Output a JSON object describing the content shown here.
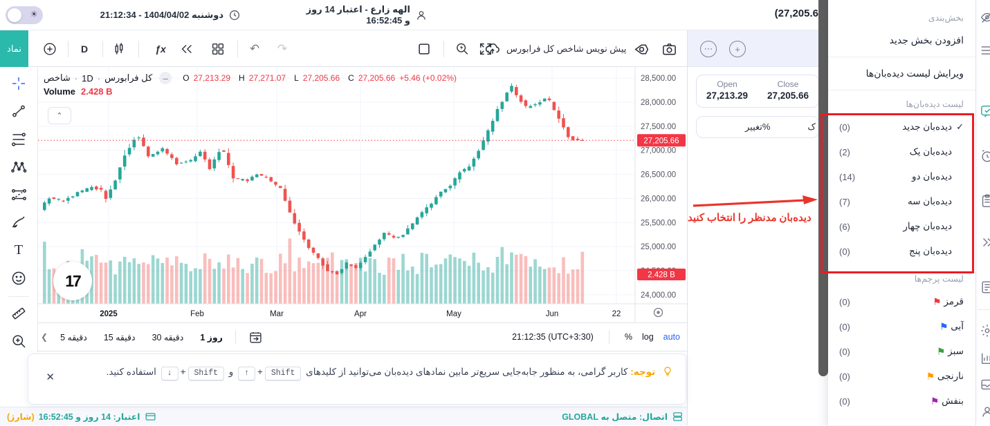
{
  "top_bar": {
    "clock_text": "دوشنبه 1404/04/02 - 21:12:34",
    "user_text": "الهه زارع - اعتبار 14 روز و 16:52:45",
    "page_price": "(27,205.6"
  },
  "toolbar": {
    "symbol_button": "نماد",
    "interval_label": "D",
    "fx_label": "ƒx",
    "draft_label": "پیش نویس شاخص کل فرابورس",
    "undo_glyph": "↶",
    "redo_glyph": "↷",
    "icons": [
      "plus-circle-icon",
      "interval-d",
      "candles-icon",
      "fx-icon",
      "rewind-icon",
      "layout-grid-icon",
      "undo-icon",
      "redo-icon",
      "square-icon",
      "zoom-flash-icon",
      "fullscreen-icon",
      "cloud-upload-icon",
      "gear-icon",
      "camera-icon"
    ]
  },
  "left_toolbar": {
    "icons": [
      "crosshair-icon",
      "trendline-icon",
      "fib-icon",
      "xabcd-icon",
      "projection-icon",
      "brush-icon",
      "text-icon",
      "emoji-icon",
      "ruler-icon",
      "zoom-in-icon"
    ],
    "text_tool_glyph": "T"
  },
  "legend": {
    "symbol_part1": "شاخص",
    "separator": "·",
    "interval": "1D",
    "symbol_part2": "کل فرابورس",
    "o_label": "O",
    "o_value": "27,213.29",
    "h_label": "H",
    "h_value": "27,271.07",
    "l_label": "L",
    "l_value": "27,205.66",
    "c_label": "C",
    "c_value": "27,205.66",
    "change": "+5.46 (+0.02%)",
    "volume_label": "Volume",
    "volume_value": "2.428 B",
    "collapse_glyph": "⌃",
    "watermark": "17"
  },
  "intervals": {
    "buttons": [
      {
        "label": "5 دقیقه",
        "selected": false
      },
      {
        "label": "15 دقیقه",
        "selected": false
      },
      {
        "label": "30 دقیقه",
        "selected": false
      },
      {
        "label": "1 روز",
        "selected": true
      }
    ],
    "clock": "21:12:35 (UTC+3:30)",
    "percent": "%",
    "log": "log",
    "auto": "auto",
    "collapse_glyph": "❮"
  },
  "chart_data": {
    "type": "candlestick+volume",
    "symbol": "شاخص کل فرابورس",
    "timeframe": "1D",
    "ohlc_current": {
      "open": 27213.29,
      "high": 27271.07,
      "low": 27205.66,
      "close": 27205.66,
      "change": "+5.46",
      "change_pct": "+0.02%"
    },
    "volume_current": "2.428 B",
    "ylim": [
      24000,
      28500
    ],
    "grid": true,
    "y_ticks": [
      {
        "label": "28,500.00",
        "price": 28500
      },
      {
        "label": "28,000.00",
        "price": 28000
      },
      {
        "label": "27,500.00",
        "price": 27500
      },
      {
        "label": "27,000.00",
        "price": 27000
      },
      {
        "label": "26,500.00",
        "price": 26500
      },
      {
        "label": "26,000.00",
        "price": 26000
      },
      {
        "label": "25,500.00",
        "price": 25500
      },
      {
        "label": "25,000.00",
        "price": 25000
      },
      {
        "label": "24,500.00",
        "price": 24500
      },
      {
        "label": "24,000.00",
        "price": 24000
      }
    ],
    "x_ticks": [
      {
        "label": "2025",
        "x": 102,
        "major": true
      },
      {
        "label": "Feb",
        "x": 230
      },
      {
        "label": "Mar",
        "x": 345
      },
      {
        "label": "Apr",
        "x": 466
      },
      {
        "label": "May",
        "x": 601
      },
      {
        "label": "Jun",
        "x": 743
      },
      {
        "label": "22",
        "x": 836
      }
    ],
    "price_line": 27205.66,
    "price_badge": "27,205.66",
    "volume_badge": "2.428 B",
    "candle_count": 115,
    "path": [
      [
        0,
        25780
      ],
      [
        2,
        26010
      ],
      [
        5,
        25950
      ],
      [
        8,
        26120
      ],
      [
        11,
        26230
      ],
      [
        13,
        26180
      ],
      [
        14,
        25990
      ],
      [
        16,
        26380
      ],
      [
        18,
        26900
      ],
      [
        20,
        27230
      ],
      [
        21,
        27260
      ],
      [
        23,
        26890
      ],
      [
        26,
        27030
      ],
      [
        29,
        26720
      ],
      [
        32,
        26780
      ],
      [
        34,
        26960
      ],
      [
        36,
        26620
      ],
      [
        38,
        26980
      ],
      [
        39,
        26950
      ],
      [
        41,
        26400
      ],
      [
        44,
        26380
      ],
      [
        46,
        26500
      ],
      [
        48,
        26420
      ],
      [
        51,
        26200
      ],
      [
        53,
        25700
      ],
      [
        55,
        25300
      ],
      [
        57,
        24980
      ],
      [
        59,
        24750
      ],
      [
        61,
        24500
      ],
      [
        63,
        24440
      ],
      [
        65,
        24650
      ],
      [
        67,
        24550
      ],
      [
        69,
        24770
      ],
      [
        71,
        25050
      ],
      [
        73,
        25280
      ],
      [
        75,
        25180
      ],
      [
        77,
        25250
      ],
      [
        80,
        25600
      ],
      [
        83,
        25900
      ],
      [
        85,
        26150
      ],
      [
        87,
        26250
      ],
      [
        89,
        26550
      ],
      [
        91,
        26650
      ],
      [
        93,
        27000
      ],
      [
        95,
        27400
      ],
      [
        97,
        27850
      ],
      [
        99,
        28200
      ],
      [
        100,
        28330
      ],
      [
        101,
        28150
      ],
      [
        103,
        27900
      ],
      [
        105,
        27960
      ],
      [
        107,
        28060
      ],
      [
        108,
        28020
      ],
      [
        110,
        27650
      ],
      [
        112,
        27280
      ],
      [
        113,
        27230
      ],
      [
        115,
        27206
      ]
    ],
    "volume_spikes": {
      "0": 2.9,
      "8": 2.55,
      "52": 3.05,
      "97": 2.65,
      "99": 2.4,
      "114": 2.428
    },
    "colors": {
      "up": "#26a69a",
      "down": "#ef5350",
      "vol_up": "rgba(38,166,154,0.45)",
      "vol_down": "rgba(239,83,80,0.38)",
      "grid": "#f0f3fa",
      "axis_text": "#50535e",
      "badge": "#f23645"
    }
  },
  "right_panel": {
    "open_label": "Open",
    "open_value": "27,213.29",
    "close_label": "Close",
    "close_value": "27,205.66",
    "change_tab": "تغییر%",
    "cut_glyph": "ک",
    "annotation": "دیده‌بان مدنظر را انتخاب کنید",
    "annotation_color": "#e8352b"
  },
  "menu": {
    "section_label": "بخش‌بندی",
    "add_section": "افزودن بخش جدید",
    "edit_watchlists": "ویرایش لیست دیده‌بان‌ها",
    "watchlists_label": "لیست دیده‌بان‌ها",
    "check_glyph": "✓",
    "watchlists": [
      {
        "name": "دیده‌بان جدید",
        "count": "(0)",
        "checked": true
      },
      {
        "name": "دیده‌بان یک",
        "count": "(2)",
        "checked": false
      },
      {
        "name": "دیده‌بان دو",
        "count": "(14)",
        "checked": false
      },
      {
        "name": "دیده‌بان سه",
        "count": "(7)",
        "checked": false
      },
      {
        "name": "دیده‌بان چهار",
        "count": "(6)",
        "checked": false
      },
      {
        "name": "دیده‌بان پنج",
        "count": "(0)",
        "checked": false
      }
    ],
    "flags_label": "لیست پرچم‌ها",
    "flag_glyph": "⚑",
    "flags": [
      {
        "name": "قرمز",
        "count": "(0)",
        "color": "#f23645"
      },
      {
        "name": "آبی",
        "count": "(0)",
        "color": "#2962ff"
      },
      {
        "name": "سبز",
        "count": "(0)",
        "color": "#3aa13f"
      },
      {
        "name": "نارنجی",
        "count": "(0)",
        "color": "#ff9800"
      },
      {
        "name": "بنفش",
        "count": "(0)",
        "color": "#9c27b0"
      }
    ]
  },
  "notice": {
    "title": "توجه:",
    "body1": "کاربر گرامی، به منظور جابه‌جایی سریع‌تر مابین نمادهای دیده‌بان می‌توانید از کلیدهای",
    "key_shift1": "Shift",
    "plus1": "+",
    "key_up": "↑",
    "conj": "و",
    "key_shift2": "Shift",
    "plus2": "+",
    "key_down": "↓",
    "body2": "استفاده کنید.",
    "close_glyph": "✕"
  },
  "status_bar": {
    "credit_text": "اعتبار: 14 روز و 16:52:45",
    "charge_text": "(شارژ)",
    "connection_text": "اتصال: متصل به GLOBAL"
  }
}
